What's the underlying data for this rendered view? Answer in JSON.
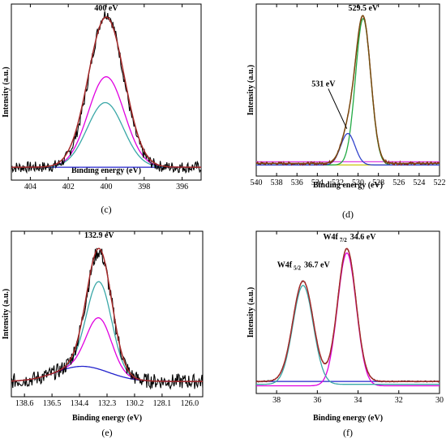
{
  "chart_data": [
    {
      "panel": "c",
      "caption": "(c)",
      "type": "line",
      "xlabel": "Binding energy (eV)",
      "ylabel": "Intensity (a.u.)",
      "x_reversed": true,
      "xlim": [
        405,
        395
      ],
      "ylim": [
        0,
        1.0
      ],
      "xticks": [
        "404",
        "402",
        "400",
        "398",
        "396"
      ],
      "xtick_values": [
        404,
        402,
        400,
        398,
        396
      ],
      "annotations": [
        {
          "text": "400 eV",
          "x": 400.0,
          "y": 1.0
        }
      ],
      "series": [
        {
          "kind": "raw",
          "color": "#000000",
          "baseline": 0.06,
          "peaks": [
            {
              "center": 400.0,
              "height": 0.95,
              "width": 0.9
            }
          ],
          "noise": 0.035
        },
        {
          "kind": "envelope",
          "color": "#a52a2a",
          "baseline": 0.06,
          "peaks": [
            {
              "center": 400.0,
              "height": 0.93,
              "width": 0.95
            }
          ]
        },
        {
          "kind": "component",
          "color": "#e000e0",
          "baseline": 0.06,
          "peaks": [
            {
              "center": 400.0,
              "height": 0.56,
              "width": 0.95
            }
          ]
        },
        {
          "kind": "component",
          "color": "#3aa7a7",
          "baseline": 0.06,
          "peaks": [
            {
              "center": 400.05,
              "height": 0.4,
              "width": 0.95
            }
          ]
        },
        {
          "kind": "background",
          "color": "#2222cc",
          "baseline": 0.06,
          "peaks": []
        }
      ]
    },
    {
      "panel": "d",
      "caption": "(d)",
      "type": "line",
      "xlabel": "Binding energy (eV)",
      "ylabel": "Intensity (a.u.)",
      "x_reversed": true,
      "xlim": [
        540,
        522
      ],
      "ylim": [
        0,
        1.0
      ],
      "xticks": [
        "540",
        "538",
        "536",
        "534",
        "532",
        "530",
        "528",
        "526",
        "524",
        "522"
      ],
      "xtick_values": [
        540,
        538,
        536,
        534,
        532,
        530,
        528,
        526,
        524,
        522
      ],
      "annotations": [
        {
          "text": "529.5 eV",
          "x": 529.5,
          "y": 1.0
        },
        {
          "text": "531 eV",
          "x": 531.0,
          "y": 0.43
        }
      ],
      "series": [
        {
          "kind": "raw",
          "color": "#8b1a1a",
          "baseline": 0.06,
          "peaks": [
            {
              "center": 529.5,
              "height": 0.92,
              "width": 0.75
            },
            {
              "center": 531.0,
              "height": 0.18,
              "width": 0.7
            }
          ],
          "noise": 0.01
        },
        {
          "kind": "envelope",
          "color": "#7a4a10",
          "baseline": 0.06,
          "peaks": [
            {
              "center": 529.5,
              "height": 0.92,
              "width": 0.75
            },
            {
              "center": 531.0,
              "height": 0.18,
              "width": 0.7
            }
          ]
        },
        {
          "kind": "component",
          "color": "#22aa44",
          "baseline": 0.05,
          "peaks": [
            {
              "center": 529.5,
              "height": 0.93,
              "width": 0.75
            }
          ]
        },
        {
          "kind": "component",
          "color": "#3344cc",
          "baseline": 0.05,
          "peaks": [
            {
              "center": 531.0,
              "height": 0.2,
              "width": 0.7
            }
          ]
        },
        {
          "kind": "background",
          "color": "#e040e0",
          "baseline": 0.07,
          "peaks": []
        },
        {
          "kind": "background",
          "color": "#cccc22",
          "baseline": 0.05,
          "peaks": []
        }
      ]
    },
    {
      "panel": "e",
      "caption": "(e)",
      "type": "line",
      "xlabel": "Binding energy (eV)",
      "ylabel": "Intensity (a.u.)",
      "x_reversed": true,
      "xlim": [
        139.6,
        125.0
      ],
      "ylim": [
        0,
        1.0
      ],
      "xticks": [
        "138.6",
        "136.5",
        "134.4",
        "132.3",
        "130.2",
        "128.1",
        "126.0"
      ],
      "xtick_values": [
        138.6,
        136.5,
        134.4,
        132.3,
        130.2,
        128.1,
        126.0
      ],
      "annotations": [
        {
          "text": "132.9 eV",
          "x": 132.9,
          "y": 1.0
        }
      ],
      "series": [
        {
          "kind": "raw",
          "color": "#000000",
          "baseline": 0.08,
          "peaks": [
            {
              "center": 132.9,
              "height": 0.78,
              "width": 0.95
            }
          ],
          "bump": {
            "center": 134.2,
            "height": 0.1,
            "width": 2.0
          },
          "noise": 0.05
        },
        {
          "kind": "envelope",
          "color": "#a52a2a",
          "baseline": 0.08,
          "peaks": [
            {
              "center": 132.9,
              "height": 0.8,
              "width": 0.95
            }
          ],
          "bump": {
            "center": 134.2,
            "height": 0.1,
            "width": 2.0
          }
        },
        {
          "kind": "component",
          "color": "#3aa7a7",
          "baseline": 0.08,
          "peaks": [
            {
              "center": 132.9,
              "height": 0.58,
              "width": 0.95
            }
          ],
          "bump": {
            "center": 134.2,
            "height": 0.1,
            "width": 2.0
          }
        },
        {
          "kind": "component",
          "color": "#e000e0",
          "baseline": 0.08,
          "peaks": [
            {
              "center": 132.9,
              "height": 0.34,
              "width": 0.95
            }
          ],
          "bump": {
            "center": 134.2,
            "height": 0.1,
            "width": 2.0
          }
        },
        {
          "kind": "background",
          "color": "#2222cc",
          "baseline": 0.08,
          "peaks": [],
          "bump": {
            "center": 134.2,
            "height": 0.1,
            "width": 2.0
          }
        }
      ]
    },
    {
      "panel": "f",
      "caption": "(f)",
      "type": "line",
      "xlabel": "Binding energy (eV)",
      "ylabel": "Intensity (a.u.)",
      "x_reversed": true,
      "xlim": [
        39,
        30
      ],
      "ylim": [
        0,
        1.0
      ],
      "xticks": [
        "38",
        "36",
        "34",
        "32",
        "30"
      ],
      "xtick_values": [
        38,
        36,
        34,
        32,
        30
      ],
      "annotations": [
        {
          "text": "W4f",
          "sub": "7/2",
          "tail": "34.6 eV",
          "x": 34.6,
          "y": 1.0
        },
        {
          "text": "W4f",
          "sub": "5/2",
          "tail": "36.7 eV",
          "x": 36.7,
          "y": 0.8
        }
      ],
      "series": [
        {
          "kind": "raw",
          "color": "#000000",
          "baseline": 0.06,
          "peaks": [
            {
              "center": 36.7,
              "height": 0.68,
              "width": 0.5
            },
            {
              "center": 34.55,
              "height": 0.9,
              "width": 0.45
            }
          ],
          "noise": 0.004
        },
        {
          "kind": "envelope",
          "color": "#a52a2a",
          "baseline": 0.06,
          "peaks": [
            {
              "center": 36.7,
              "height": 0.68,
              "width": 0.5
            },
            {
              "center": 34.55,
              "height": 0.9,
              "width": 0.45
            }
          ]
        },
        {
          "kind": "component",
          "color": "#e000e0",
          "baseline": 0.03,
          "peaks": [
            {
              "center": 34.55,
              "height": 0.9,
              "width": 0.46
            }
          ]
        },
        {
          "kind": "component",
          "color": "#3aa7a7",
          "baseline": 0.04,
          "peaks": [
            {
              "center": 36.7,
              "height": 0.67,
              "width": 0.5
            }
          ]
        },
        {
          "kind": "background",
          "color": "#2222cc",
          "baseline": 0.06,
          "peaks": []
        }
      ]
    }
  ]
}
